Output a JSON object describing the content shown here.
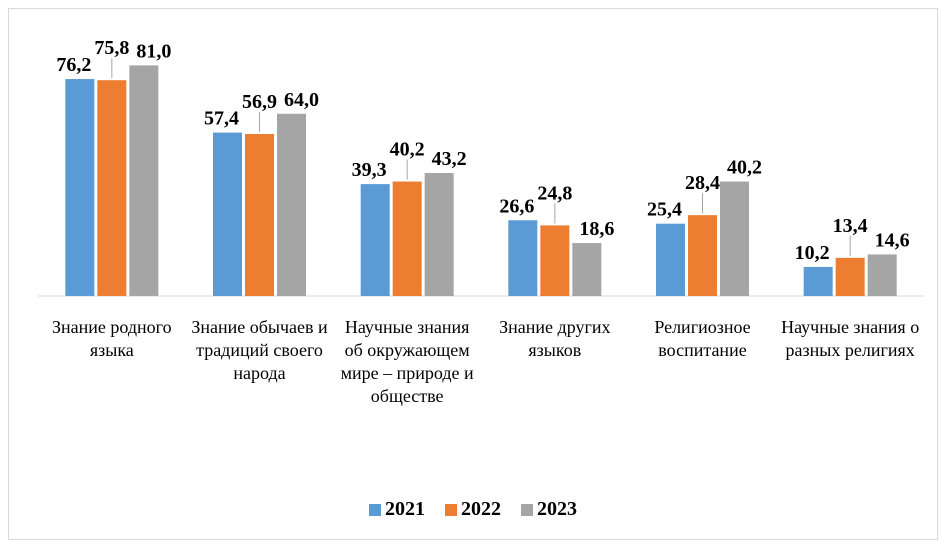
{
  "chart_data": {
    "type": "bar",
    "categories": [
      "Знание родного языка",
      "Знание обычаев и традиций своего народа",
      "Научные знания об окружающем мире – природе и обществе",
      "Знание других языков",
      "Религиозное воспитание",
      "Научные знания о разных религиях"
    ],
    "series": [
      {
        "name": "2021",
        "color": "#5b9bd5",
        "values": [
          76.2,
          57.4,
          39.3,
          26.6,
          25.4,
          10.2
        ],
        "value_labels": [
          "76,2",
          "57,4",
          "39,3",
          "26,6",
          "25,4",
          "10,2"
        ]
      },
      {
        "name": "2022",
        "color": "#ed7d31",
        "values": [
          75.8,
          56.9,
          40.2,
          24.8,
          28.4,
          13.4
        ],
        "value_labels": [
          "75,8",
          "56,9",
          "40,2",
          "24,8",
          "28,4",
          "13,4"
        ]
      },
      {
        "name": "2023",
        "color": "#a5a5a5",
        "values": [
          81.0,
          64.0,
          43.2,
          18.6,
          40.2,
          14.6
        ],
        "value_labels": [
          "81,0",
          "64,0",
          "43,2",
          "18,6",
          "40,2",
          "14,6"
        ]
      }
    ],
    "ylim": [
      0,
      85
    ],
    "legend": "bottom"
  }
}
